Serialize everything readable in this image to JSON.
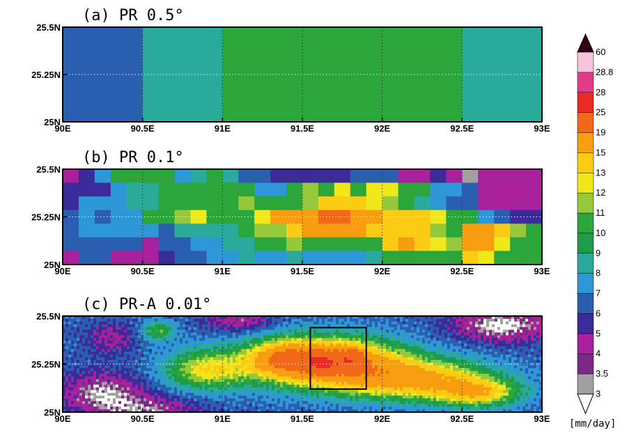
{
  "chart_data": [
    {
      "type": "heatmap",
      "title": "(a) PR 0.5°",
      "xlim": [
        90,
        93
      ],
      "ylim": [
        25,
        25.5
      ],
      "x_ticks": [
        "90E",
        "90.5E",
        "91E",
        "91.5E",
        "92E",
        "92.5E",
        "93E"
      ],
      "y_ticks": [
        "25N",
        "25.25N",
        "25.5N"
      ],
      "resolution_deg": 0.5,
      "grid": [
        [
          6.5,
          8.5,
          10,
          10.5,
          10,
          8.5
        ]
      ]
    },
    {
      "type": "heatmap",
      "title": "(b) PR 0.1°",
      "xlim": [
        90,
        93
      ],
      "ylim": [
        25,
        25.5
      ],
      "x_ticks": [
        "90E",
        "90.5E",
        "91E",
        "91.5E",
        "92E",
        "92.5E",
        "93E"
      ],
      "y_ticks": [
        "25N",
        "25.25N",
        "25.5N"
      ],
      "resolution_deg": 0.1,
      "grid": [
        [
          4.5,
          5.5,
          7.5,
          10,
          10,
          10,
          10.5,
          7.5,
          8.5,
          10.5,
          8.5,
          6.5,
          6.5,
          5.5,
          5.5,
          5.5,
          5.5,
          5.5,
          6.5,
          6.5,
          6.5,
          4.5,
          4.5,
          5.5,
          4.5,
          3.2,
          4.5,
          4.5,
          4.5,
          4.5
        ],
        [
          5.5,
          5.5,
          5.5,
          7.5,
          8.5,
          8.5,
          10,
          10,
          10,
          10,
          10,
          10,
          7.5,
          7.5,
          10.5,
          11.5,
          10,
          12.5,
          10.5,
          12.5,
          12.5,
          10,
          10,
          7.5,
          7.5,
          6.5,
          4.5,
          4.5,
          4.5,
          4.5
        ],
        [
          5.5,
          7.5,
          7.5,
          7.5,
          8.5,
          8.5,
          10,
          10,
          10,
          10,
          10.5,
          11.5,
          10,
          10.5,
          10.5,
          11.5,
          13.5,
          13.5,
          14,
          12.5,
          11.5,
          10.5,
          8.5,
          7.5,
          6.5,
          6.5,
          4.5,
          4.5,
          4.5,
          4.5
        ],
        [
          6.5,
          7.5,
          6.5,
          7.5,
          7.5,
          10,
          10,
          11.5,
          12,
          10.5,
          10.5,
          10.5,
          12,
          15,
          15,
          15,
          19,
          19,
          16,
          16,
          14,
          14,
          14,
          12.5,
          10.5,
          10,
          7.5,
          6.5,
          5.5,
          5.5
        ],
        [
          6.5,
          7.5,
          7.5,
          7.5,
          7.5,
          7.5,
          6.5,
          8.5,
          8.5,
          8.5,
          8.5,
          10,
          11,
          11,
          14,
          16,
          16,
          16,
          15,
          14,
          14,
          14,
          14,
          11.5,
          10.5,
          15,
          15,
          14,
          11.5,
          10
        ],
        [
          6.5,
          6.5,
          6.5,
          6.5,
          6.5,
          4.5,
          6.5,
          6.5,
          7.5,
          7.5,
          8.5,
          8.5,
          10,
          10,
          11,
          10.5,
          10,
          10,
          10,
          10.5,
          14,
          15,
          14,
          12,
          11,
          15,
          15,
          12,
          10,
          10
        ],
        [
          4.5,
          6.5,
          6.5,
          4.5,
          4.5,
          4.5,
          5.5,
          6.5,
          6.5,
          7.5,
          7.5,
          8.5,
          7.5,
          7.5,
          8.5,
          7.5,
          7.5,
          7.5,
          7.5,
          8.5,
          10,
          10,
          10,
          10,
          10,
          13.5,
          12,
          10,
          10,
          10
        ]
      ]
    },
    {
      "type": "heatmap",
      "title": "(c) PR-A 0.01°",
      "xlim": [
        90,
        93
      ],
      "ylim": [
        25,
        25.5
      ],
      "x_ticks": [
        "90E",
        "90.5E",
        "91E",
        "91.5E",
        "92E",
        "92.5E",
        "93E"
      ],
      "y_ticks": [
        "25N",
        "25.25N",
        "25.5N"
      ],
      "resolution_deg": 0.01,
      "field": "high-resolution precipitation rate; maxima near 91.6E–91.8E, 25.27N",
      "highlight_box": {
        "lon": [
          91.55,
          91.9
        ],
        "lat": [
          25.12,
          25.44
        ]
      }
    }
  ],
  "colorbar": {
    "unit": "[mm/day]",
    "labels": [
      "3",
      "3.5",
      "4",
      "5",
      "6",
      "7",
      "8",
      "9",
      "10",
      "11",
      "12",
      "13",
      "15",
      "19",
      "25",
      "28",
      "28.8",
      "60"
    ],
    "colors": [
      "#a0a0a0",
      "#7a2a86",
      "#a8209c",
      "#3b2b9a",
      "#2a5fb0",
      "#2e97d8",
      "#2aaa9a",
      "#1d9b48",
      "#2aa63a",
      "#96c83c",
      "#f0e81a",
      "#fccc14",
      "#f89c10",
      "#f06818",
      "#ea2a24",
      "#e43a8a",
      "#f4c4dc"
    ],
    "under_color": "#ffffff",
    "over_color": "#33001a"
  }
}
